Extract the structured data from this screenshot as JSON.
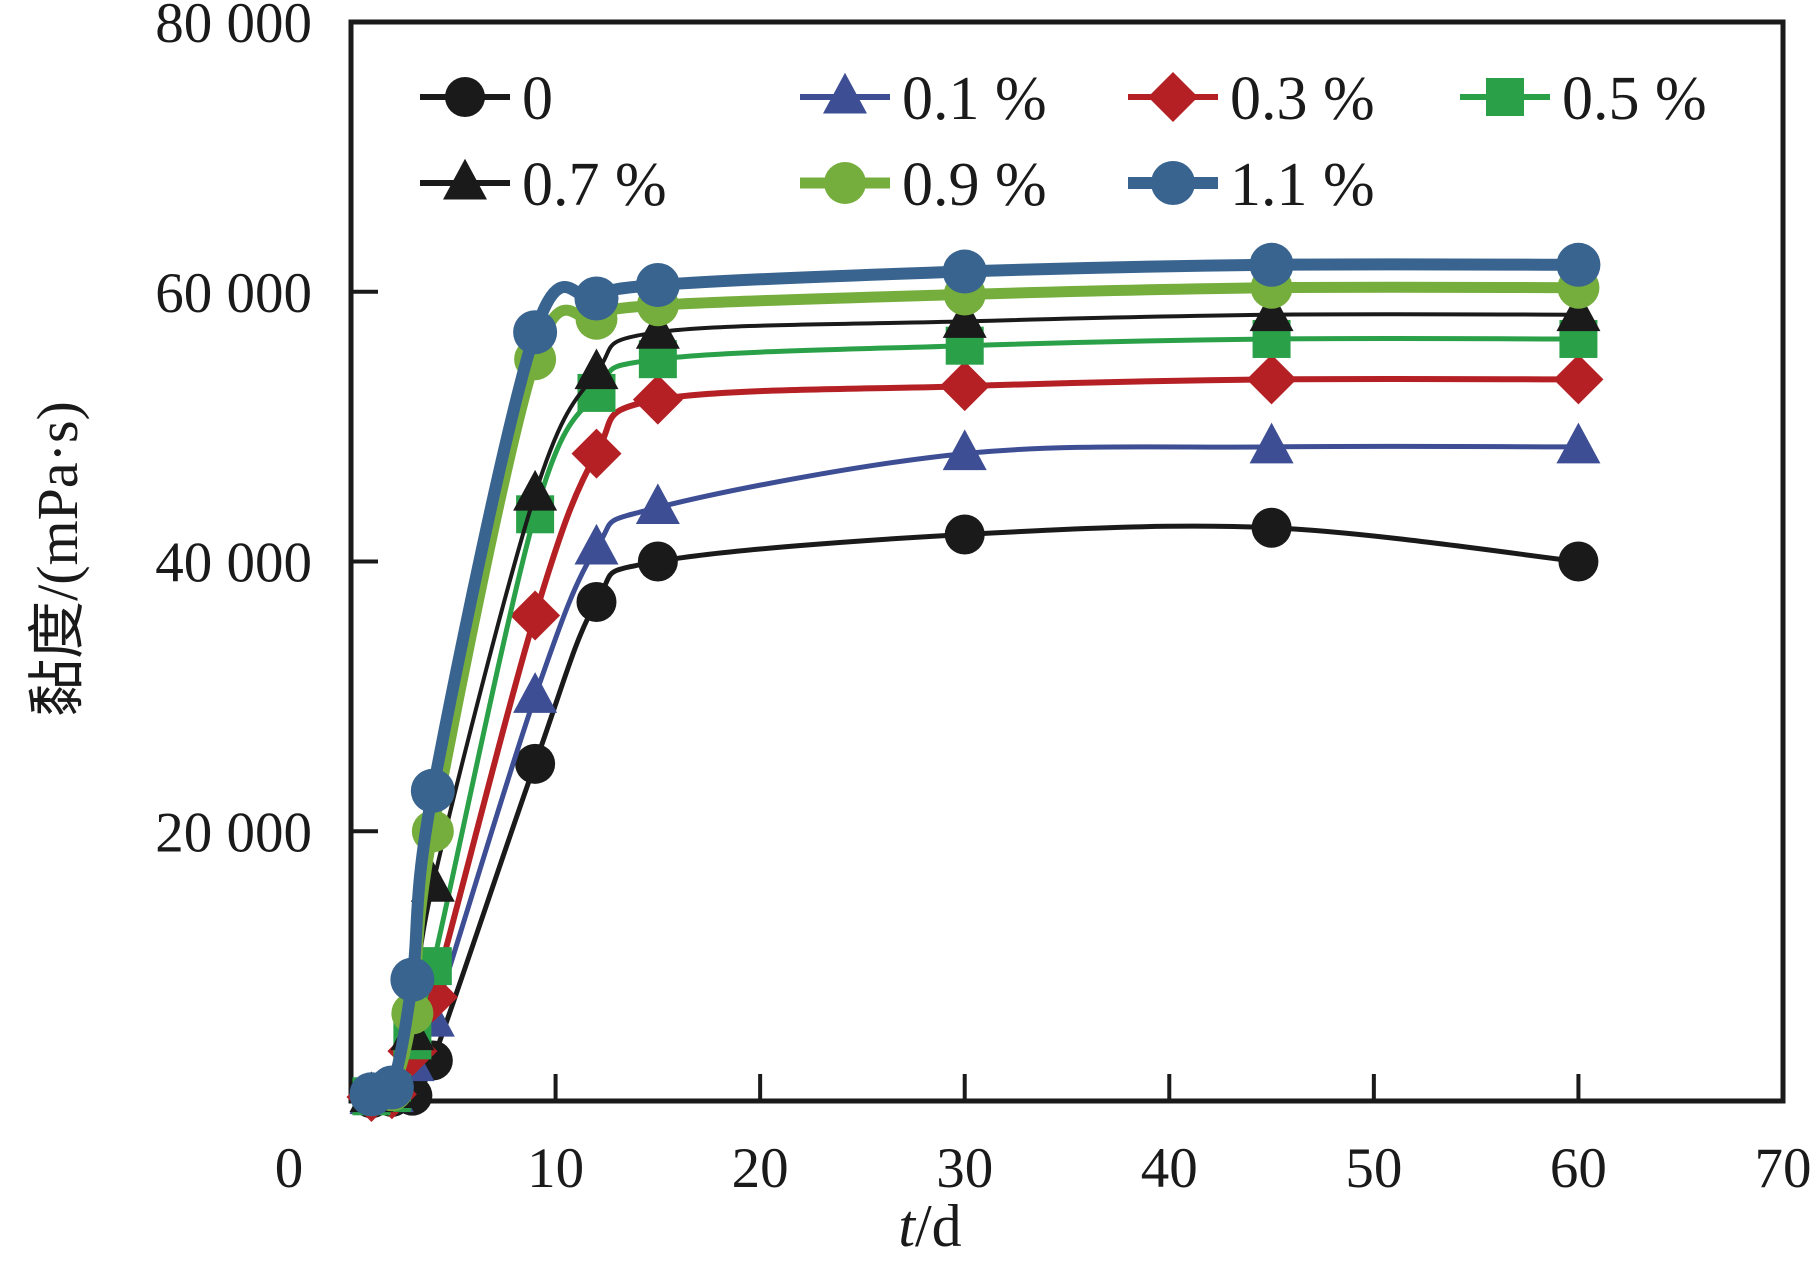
{
  "figure": {
    "ylabel": "黏度/(mPa·s)",
    "xlabel_t": "t",
    "xlabel_unit": "/d"
  },
  "chart_data": {
    "type": "line",
    "title": "",
    "xlabel": "t/d",
    "ylabel": "黏度/(mPa·s)",
    "xlim": [
      0,
      70
    ],
    "ylim": [
      0,
      80000
    ],
    "grid": false,
    "legend_position": "top-inside-two-rows",
    "x_ticks": [
      0,
      10,
      20,
      30,
      40,
      50,
      60,
      70
    ],
    "x_tick_labels": [
      "0",
      "10",
      "20",
      "30",
      "40",
      "50",
      "60",
      "70"
    ],
    "y_ticks": [
      20000,
      40000,
      60000,
      80000
    ],
    "y_tick_labels": [
      "20 000",
      "40 000",
      "60 000",
      "80 000"
    ],
    "x": [
      1,
      2,
      3,
      4,
      9,
      12,
      15,
      30,
      45,
      60
    ],
    "series": [
      {
        "name": "0",
        "color": "#1a1a1a",
        "marker": "circle",
        "marker_size": 20,
        "line_width": 5,
        "values": [
          200,
          300,
          400,
          3000,
          25000,
          37000,
          40000,
          42000,
          42500,
          40000
        ]
      },
      {
        "name": "0.1 %",
        "color": "#3e4e94",
        "marker": "triangle",
        "marker_size": 22,
        "line_width": 5,
        "values": [
          250,
          400,
          2700,
          6000,
          30000,
          41000,
          44000,
          48000,
          48500,
          48500
        ]
      },
      {
        "name": "0.3 %",
        "color": "#b52025",
        "marker": "diamond",
        "marker_size": 25,
        "line_width": 6,
        "values": [
          300,
          500,
          3700,
          7700,
          36000,
          48000,
          52000,
          53000,
          53500,
          53500
        ]
      },
      {
        "name": "0.5 %",
        "color": "#2aa148",
        "marker": "square",
        "marker_size": 19,
        "line_width": 5,
        "values": [
          350,
          600,
          4500,
          10000,
          43500,
          52500,
          55000,
          56000,
          56500,
          56500
        ]
      },
      {
        "name": "0.7 %",
        "color": "#1a1a1a",
        "marker": "triangle",
        "marker_size": 22,
        "line_width": 4,
        "values": [
          400,
          700,
          5000,
          16000,
          45000,
          54000,
          57000,
          57800,
          58300,
          58300
        ]
      },
      {
        "name": "0.9 %",
        "color": "#76ae3e",
        "marker": "circle",
        "marker_size": 21,
        "line_width": 11,
        "values": [
          450,
          800,
          6500,
          20000,
          55000,
          58000,
          59000,
          59800,
          60300,
          60300
        ]
      },
      {
        "name": "1.1 %",
        "color": "#38648f",
        "marker": "circle",
        "marker_size": 22,
        "line_width": 12,
        "values": [
          500,
          1000,
          9000,
          23000,
          57000,
          59500,
          60500,
          61500,
          62000,
          62000
        ]
      }
    ]
  }
}
